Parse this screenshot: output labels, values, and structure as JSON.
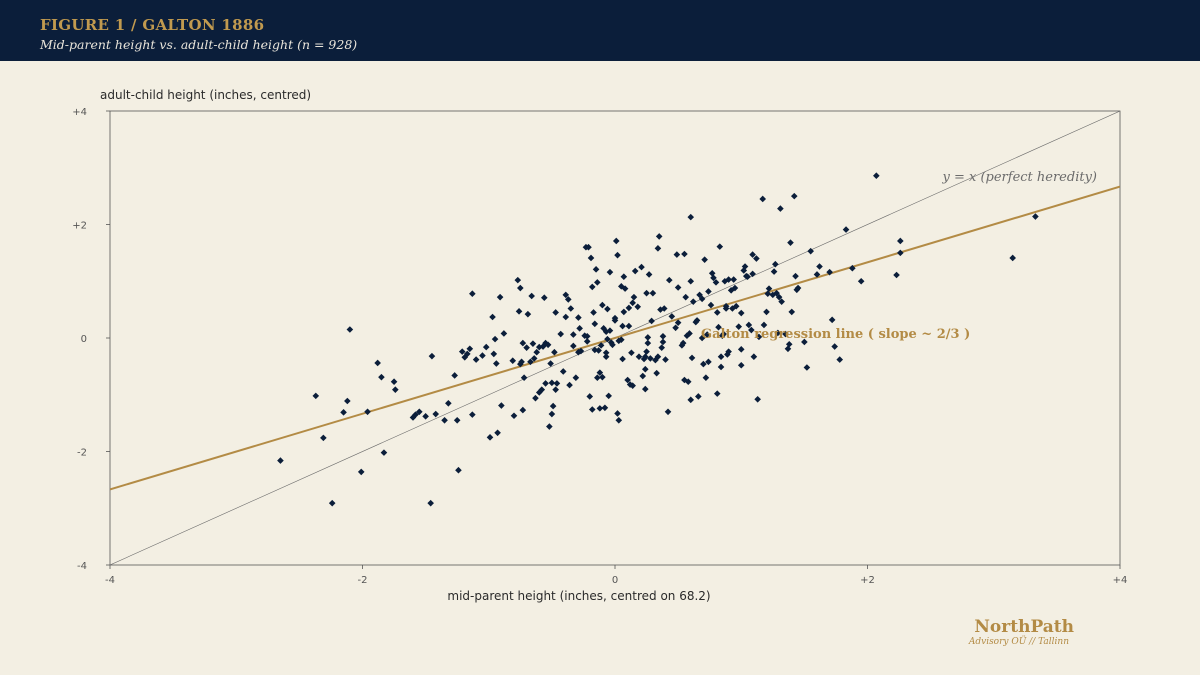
{
  "header": {
    "title": "FIGURE 1 / GALTON 1886",
    "subtitle": "Mid-parent height vs. adult-child height (n = 928)"
  },
  "brand": {
    "name": "NorthPath",
    "tagline": "Advisory OÜ // Tallinn"
  },
  "colors": {
    "banner": "#0b1e3a",
    "background": "#f3efe3",
    "accent": "#b38b45",
    "points": "#0b1e3a",
    "identity_line": "#6b6b6b"
  },
  "chart_data": {
    "type": "scatter",
    "xlabel": "mid-parent height (inches, centred on 68.2)",
    "ylabel": "adult-child height (inches, centred)",
    "xlim": [
      -4,
      4
    ],
    "ylim": [
      -4,
      4
    ],
    "x_ticks": [
      {
        "value": -4,
        "label": "-4"
      },
      {
        "value": -2,
        "label": "-2"
      },
      {
        "value": 0,
        "label": "0"
      },
      {
        "value": 2,
        "label": "+2"
      },
      {
        "value": 4,
        "label": "+4"
      }
    ],
    "y_ticks": [
      {
        "value": -4,
        "label": "-4"
      },
      {
        "value": -2,
        "label": "-2"
      },
      {
        "value": 0,
        "label": "0"
      },
      {
        "value": 2,
        "label": "+2"
      },
      {
        "value": 4,
        "label": "+4"
      }
    ],
    "grid": false,
    "lines": [
      {
        "name": "identity",
        "label": "y = x  (perfect heredity)",
        "slope": 1,
        "intercept": 0
      },
      {
        "name": "regression",
        "label": "Galton regression line  ( slope ~ 2/3 )",
        "slope": 0.667,
        "intercept": 0
      }
    ],
    "points": [
      [
        -2.65,
        -2.16
      ],
      [
        -2.37,
        -1.02
      ],
      [
        -2.31,
        -1.76
      ],
      [
        -2.24,
        -2.91
      ],
      [
        -2.15,
        -1.31
      ],
      [
        -2.12,
        -1.11
      ],
      [
        -2.1,
        0.15
      ],
      [
        -2.01,
        -2.36
      ],
      [
        -1.96,
        -1.3
      ],
      [
        -1.88,
        -0.44
      ],
      [
        -1.85,
        -0.69
      ],
      [
        -1.83,
        -2.02
      ],
      [
        -1.75,
        -0.77
      ],
      [
        -1.74,
        -0.91
      ],
      [
        -1.6,
        -1.4
      ],
      [
        -1.58,
        -1.35
      ],
      [
        -1.55,
        -1.3
      ],
      [
        -1.5,
        -1.38
      ],
      [
        -1.46,
        -2.91
      ],
      [
        -1.45,
        -0.32
      ],
      [
        -1.42,
        -1.34
      ],
      [
        -1.35,
        -1.45
      ],
      [
        -1.32,
        -1.15
      ],
      [
        -1.27,
        -0.66
      ],
      [
        -1.25,
        -1.45
      ],
      [
        -1.24,
        -2.33
      ],
      [
        -1.21,
        -0.24
      ],
      [
        -1.19,
        -0.34
      ],
      [
        -1.17,
        -0.28
      ],
      [
        -1.15,
        -0.19
      ],
      [
        -1.13,
        0.78
      ],
      [
        -1.13,
        -1.35
      ],
      [
        -1.1,
        -0.38
      ],
      [
        -1.05,
        -0.31
      ],
      [
        -1.02,
        -0.16
      ],
      [
        -0.99,
        -1.75
      ],
      [
        -0.97,
        0.37
      ],
      [
        -0.96,
        -0.28
      ],
      [
        -0.95,
        -0.02
      ],
      [
        -0.94,
        -0.45
      ],
      [
        -0.93,
        -1.67
      ],
      [
        -0.91,
        0.72
      ],
      [
        -0.9,
        -1.19
      ],
      [
        -0.88,
        0.08
      ],
      [
        -0.81,
        -0.4
      ],
      [
        -0.8,
        -1.37
      ],
      [
        -0.77,
        1.02
      ],
      [
        -0.76,
        0.47
      ],
      [
        -0.75,
        0.88
      ],
      [
        -0.75,
        -0.46
      ],
      [
        -0.74,
        -0.42
      ],
      [
        -0.73,
        -0.09
      ],
      [
        -0.73,
        -1.27
      ],
      [
        -0.72,
        -0.7
      ],
      [
        -0.7,
        -0.17
      ],
      [
        -0.69,
        0.42
      ],
      [
        -0.67,
        -0.42
      ],
      [
        -0.66,
        0.74
      ],
      [
        -0.65,
        -0.1
      ],
      [
        -0.64,
        -0.36
      ],
      [
        -0.63,
        -1.06
      ],
      [
        -0.62,
        -0.25
      ],
      [
        -0.6,
        -0.96
      ],
      [
        -0.6,
        -0.16
      ],
      [
        -0.58,
        -0.91
      ],
      [
        -0.57,
        -0.15
      ],
      [
        -0.56,
        0.71
      ],
      [
        -0.55,
        -0.09
      ],
      [
        -0.55,
        -0.8
      ],
      [
        -0.53,
        -0.12
      ],
      [
        -0.52,
        -1.56
      ],
      [
        -0.51,
        -0.45
      ],
      [
        -0.5,
        -0.79
      ],
      [
        -0.5,
        -1.34
      ],
      [
        -0.49,
        -1.2
      ],
      [
        -0.48,
        -0.25
      ],
      [
        -0.47,
        0.45
      ],
      [
        -0.47,
        -0.91
      ],
      [
        -0.46,
        -0.8
      ],
      [
        -0.43,
        0.07
      ],
      [
        -0.41,
        -0.59
      ],
      [
        -0.39,
        0.76
      ],
      [
        -0.39,
        0.37
      ],
      [
        -0.37,
        0.68
      ],
      [
        -0.36,
        -0.83
      ],
      [
        -0.35,
        0.52
      ],
      [
        -0.33,
        -0.14
      ],
      [
        -0.33,
        0.06
      ],
      [
        -0.31,
        -0.7
      ],
      [
        -0.29,
        0.36
      ],
      [
        -0.29,
        -0.25
      ],
      [
        -0.28,
        0.17
      ],
      [
        -0.27,
        -0.23
      ],
      [
        -0.24,
        0.04
      ],
      [
        -0.23,
        1.6
      ],
      [
        -0.22,
        0.03
      ],
      [
        -0.22,
        -0.06
      ],
      [
        -0.21,
        1.6
      ],
      [
        -0.2,
        -1.03
      ],
      [
        -0.19,
        1.41
      ],
      [
        -0.18,
        -1.26
      ],
      [
        -0.18,
        0.9
      ],
      [
        -0.17,
        0.45
      ],
      [
        -0.16,
        0.25
      ],
      [
        -0.16,
        -0.21
      ],
      [
        -0.15,
        1.21
      ],
      [
        -0.14,
        0.98
      ],
      [
        -0.14,
        -0.7
      ],
      [
        -0.13,
        -0.22
      ],
      [
        -0.12,
        -0.61
      ],
      [
        -0.12,
        -1.24
      ],
      [
        -0.11,
        -0.13
      ],
      [
        -0.1,
        -0.69
      ],
      [
        -0.1,
        0.58
      ],
      [
        -0.09,
        0.17
      ],
      [
        -0.08,
        -1.23
      ],
      [
        -0.07,
        -0.26
      ],
      [
        -0.07,
        -0.33
      ],
      [
        -0.07,
        0.11
      ],
      [
        -0.06,
        0.51
      ],
      [
        -0.06,
        -0.02
      ],
      [
        -0.05,
        -1.02
      ],
      [
        -0.04,
        0.13
      ],
      [
        -0.04,
        1.16
      ],
      [
        -0.03,
        -0.08
      ],
      [
        -0.02,
        -0.12
      ],
      [
        0.0,
        0.35
      ],
      [
        0.0,
        0.31
      ],
      [
        0.01,
        1.71
      ],
      [
        0.02,
        1.46
      ],
      [
        0.02,
        -1.33
      ],
      [
        0.03,
        -0.05
      ],
      [
        0.03,
        -1.45
      ],
      [
        0.05,
        -0.03
      ],
      [
        0.05,
        0.91
      ],
      [
        0.06,
        0.21
      ],
      [
        0.06,
        -0.37
      ],
      [
        0.07,
        0.46
      ],
      [
        0.07,
        1.08
      ],
      [
        0.08,
        0.87
      ],
      [
        0.1,
        -0.74
      ],
      [
        0.11,
        0.21
      ],
      [
        0.11,
        0.53
      ],
      [
        0.12,
        -0.82
      ],
      [
        0.13,
        -0.26
      ],
      [
        0.14,
        0.62
      ],
      [
        0.14,
        -0.84
      ],
      [
        0.15,
        0.72
      ],
      [
        0.16,
        1.18
      ],
      [
        0.18,
        0.55
      ],
      [
        0.19,
        -0.33
      ],
      [
        0.21,
        1.25
      ],
      [
        0.22,
        -0.67
      ],
      [
        0.23,
        -0.37
      ],
      [
        0.24,
        -0.55
      ],
      [
        0.24,
        -0.33
      ],
      [
        0.24,
        -0.9
      ],
      [
        0.25,
        0.79
      ],
      [
        0.25,
        -0.24
      ],
      [
        0.26,
        -0.09
      ],
      [
        0.26,
        0.01
      ],
      [
        0.27,
        1.12
      ],
      [
        0.28,
        -0.36
      ],
      [
        0.29,
        0.3
      ],
      [
        0.3,
        0.79
      ],
      [
        0.32,
        -0.39
      ],
      [
        0.33,
        -0.62
      ],
      [
        0.34,
        1.58
      ],
      [
        0.34,
        -0.33
      ],
      [
        0.35,
        1.79
      ],
      [
        0.36,
        0.5
      ],
      [
        0.37,
        -0.17
      ],
      [
        0.38,
        -0.07
      ],
      [
        0.38,
        0.03
      ],
      [
        0.39,
        0.52
      ],
      [
        0.4,
        -0.38
      ],
      [
        0.42,
        -1.3
      ],
      [
        0.43,
        1.02
      ],
      [
        0.45,
        0.38
      ],
      [
        0.48,
        0.18
      ],
      [
        0.49,
        1.47
      ],
      [
        0.5,
        0.27
      ],
      [
        0.5,
        0.89
      ],
      [
        0.53,
        -0.13
      ],
      [
        0.54,
        -0.09
      ],
      [
        0.55,
        1.48
      ],
      [
        0.55,
        -0.74
      ],
      [
        0.56,
        0.72
      ],
      [
        0.57,
        0.04
      ],
      [
        0.58,
        -0.77
      ],
      [
        0.59,
        0.08
      ],
      [
        0.6,
        -1.09
      ],
      [
        0.6,
        2.13
      ],
      [
        0.6,
        1.0
      ],
      [
        0.61,
        -0.35
      ],
      [
        0.62,
        0.64
      ],
      [
        0.64,
        0.28
      ],
      [
        0.65,
        0.31
      ],
      [
        0.66,
        -1.03
      ],
      [
        0.67,
        0.76
      ],
      [
        0.69,
        0.0
      ],
      [
        0.69,
        0.69
      ],
      [
        0.7,
        -0.46
      ],
      [
        0.71,
        1.38
      ],
      [
        0.72,
        -0.7
      ],
      [
        0.73,
        0.06
      ],
      [
        0.74,
        0.82
      ],
      [
        0.74,
        -0.42
      ],
      [
        0.76,
        0.58
      ],
      [
        0.77,
        1.14
      ],
      [
        0.78,
        1.06
      ],
      [
        0.8,
        0.98
      ],
      [
        0.81,
        0.45
      ],
      [
        0.81,
        -0.98
      ],
      [
        0.82,
        0.19
      ],
      [
        0.83,
        1.61
      ],
      [
        0.84,
        -0.51
      ],
      [
        0.84,
        -0.33
      ],
      [
        0.85,
        0.04
      ],
      [
        0.86,
        0.07
      ],
      [
        0.87,
        1.0
      ],
      [
        0.88,
        0.52
      ],
      [
        0.88,
        0.56
      ],
      [
        0.89,
        -0.29
      ],
      [
        0.9,
        1.03
      ],
      [
        0.9,
        -0.24
      ],
      [
        0.92,
        0.84
      ],
      [
        0.93,
        0.52
      ],
      [
        0.94,
        1.03
      ],
      [
        0.95,
        0.88
      ],
      [
        0.96,
        0.56
      ],
      [
        0.98,
        0.2
      ],
      [
        1.0,
        -0.48
      ],
      [
        1.0,
        -0.2
      ],
      [
        1.0,
        0.44
      ],
      [
        1.02,
        1.19
      ],
      [
        1.03,
        1.26
      ],
      [
        1.04,
        1.09
      ],
      [
        1.05,
        1.08
      ],
      [
        1.06,
        0.23
      ],
      [
        1.08,
        0.14
      ],
      [
        1.09,
        1.13
      ],
      [
        1.09,
        1.47
      ],
      [
        1.1,
        -0.33
      ],
      [
        1.12,
        1.4
      ],
      [
        1.13,
        -1.08
      ],
      [
        1.14,
        0.02
      ],
      [
        1.17,
        2.45
      ],
      [
        1.18,
        0.23
      ],
      [
        1.2,
        0.46
      ],
      [
        1.21,
        0.78
      ],
      [
        1.22,
        0.87
      ],
      [
        1.25,
        0.76
      ],
      [
        1.26,
        1.17
      ],
      [
        1.27,
        1.3
      ],
      [
        1.28,
        0.79
      ],
      [
        1.29,
        0.09
      ],
      [
        1.3,
        0.72
      ],
      [
        1.31,
        2.28
      ],
      [
        1.32,
        0.64
      ],
      [
        1.35,
        0.07
      ],
      [
        1.37,
        -0.19
      ],
      [
        1.38,
        -0.11
      ],
      [
        1.39,
        1.68
      ],
      [
        1.4,
        0.46
      ],
      [
        1.42,
        2.5
      ],
      [
        1.43,
        1.09
      ],
      [
        1.44,
        0.85
      ],
      [
        1.45,
        0.88
      ],
      [
        1.5,
        -0.07
      ],
      [
        1.52,
        -0.52
      ],
      [
        1.55,
        1.53
      ],
      [
        1.6,
        1.12
      ],
      [
        1.62,
        1.26
      ],
      [
        1.7,
        1.16
      ],
      [
        1.72,
        0.32
      ],
      [
        1.74,
        -0.15
      ],
      [
        1.78,
        -0.38
      ],
      [
        1.83,
        1.91
      ],
      [
        1.88,
        1.23
      ],
      [
        1.95,
        1.0
      ],
      [
        2.07,
        2.86
      ],
      [
        2.23,
        1.11
      ],
      [
        2.26,
        1.71
      ],
      [
        2.26,
        1.5
      ],
      [
        3.15,
        1.41
      ],
      [
        3.33,
        2.14
      ]
    ]
  }
}
